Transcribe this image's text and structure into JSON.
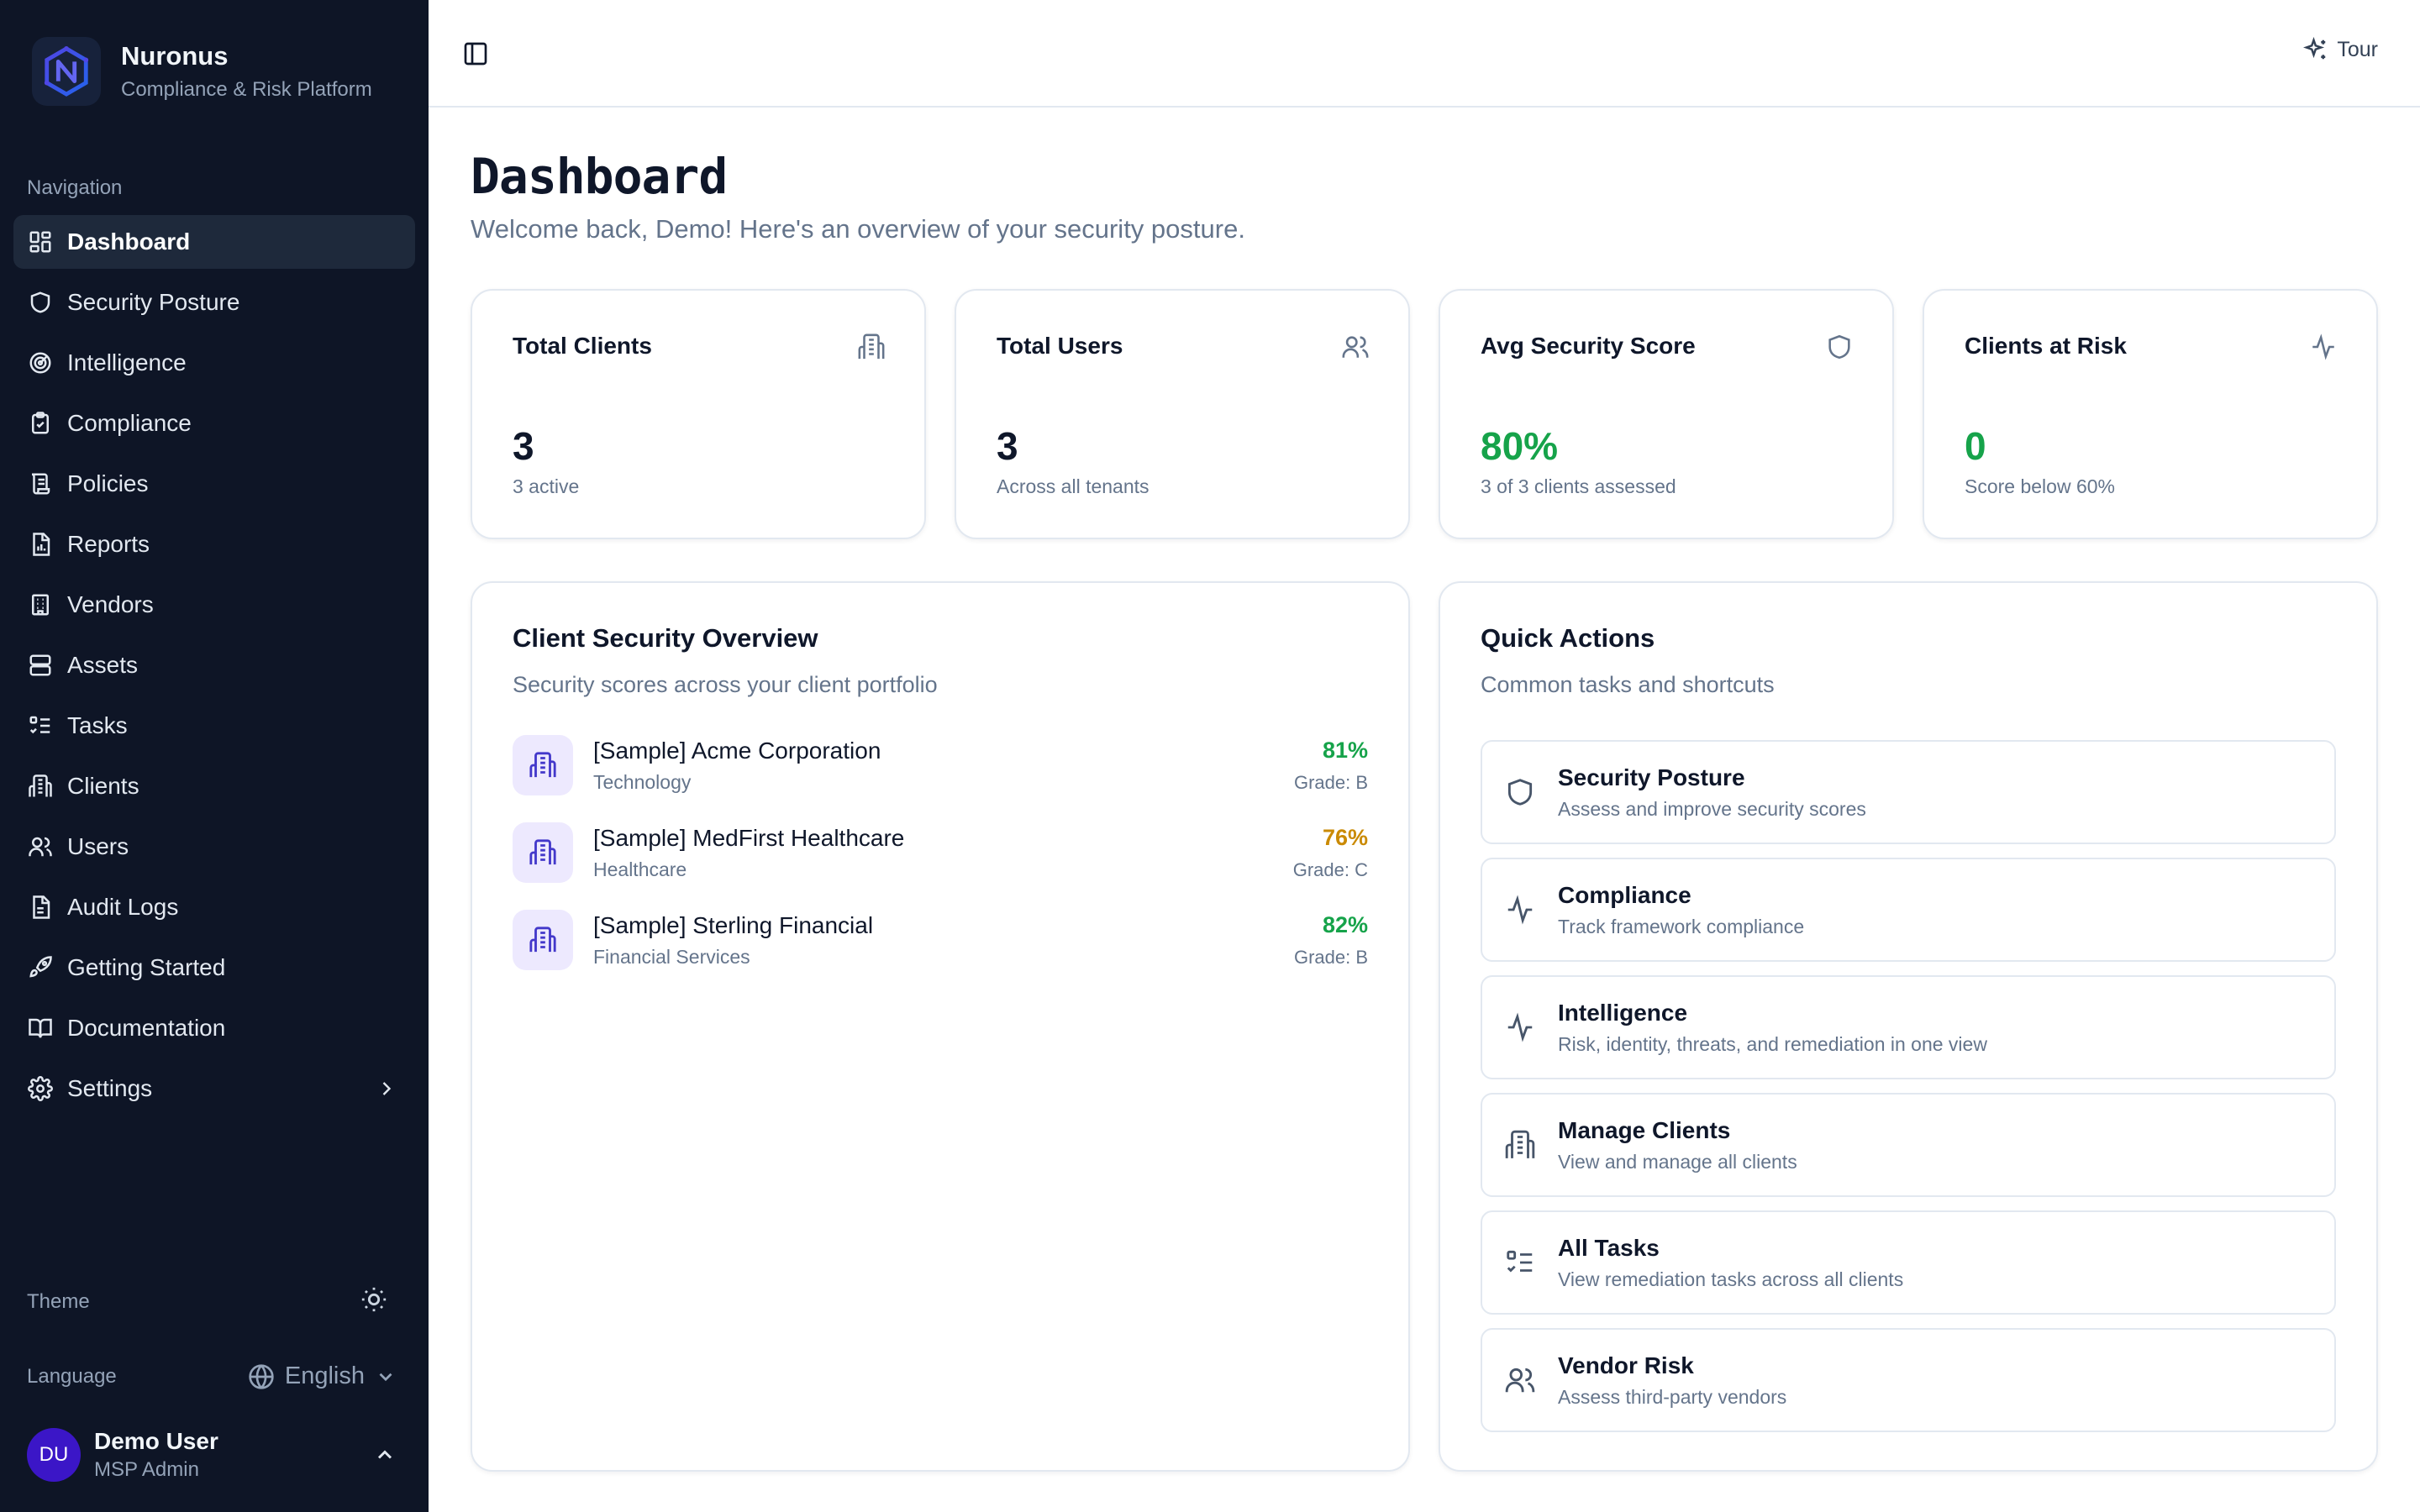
{
  "brand": {
    "name": "Nuronus",
    "subtitle": "Compliance & Risk Platform",
    "logo_icon": "nuronus-logo-icon"
  },
  "sidebar": {
    "heading": "Navigation",
    "items": [
      {
        "label": "Dashboard",
        "icon": "dashboard-icon",
        "active": true
      },
      {
        "label": "Security Posture",
        "icon": "shield-icon"
      },
      {
        "label": "Intelligence",
        "icon": "radar-icon"
      },
      {
        "label": "Compliance",
        "icon": "clipboard-check-icon"
      },
      {
        "label": "Policies",
        "icon": "scroll-icon"
      },
      {
        "label": "Reports",
        "icon": "report-icon"
      },
      {
        "label": "Vendors",
        "icon": "building-icon"
      },
      {
        "label": "Assets",
        "icon": "server-icon"
      },
      {
        "label": "Tasks",
        "icon": "list-checks-icon"
      },
      {
        "label": "Clients",
        "icon": "office-icon"
      },
      {
        "label": "Users",
        "icon": "users-icon"
      },
      {
        "label": "Audit Logs",
        "icon": "file-text-icon"
      },
      {
        "label": "Getting Started",
        "icon": "rocket-icon"
      },
      {
        "label": "Documentation",
        "icon": "book-icon"
      },
      {
        "label": "Settings",
        "icon": "gear-icon"
      }
    ],
    "theme_label": "Theme",
    "language_label": "Language",
    "language_value": "English",
    "user": {
      "initials": "DU",
      "name": "Demo User",
      "role": "MSP Admin"
    }
  },
  "topbar": {
    "tour_label": "Tour"
  },
  "page": {
    "title": "Dashboard",
    "subtitle": "Welcome back, Demo! Here's an overview of your security posture."
  },
  "stats": [
    {
      "label": "Total Clients",
      "value": "3",
      "desc": "3 active",
      "icon": "building-icon"
    },
    {
      "label": "Total Users",
      "value": "3",
      "desc": "Across all tenants",
      "icon": "users-icon"
    },
    {
      "label": "Avg Security Score",
      "value": "80%",
      "desc": "3 of 3 clients assessed",
      "icon": "shield-icon"
    },
    {
      "label": "Clients at Risk",
      "value": "0",
      "desc": "Score below 60%",
      "icon": "activity-icon"
    }
  ],
  "client_overview": {
    "title": "Client Security Overview",
    "subtitle": "Security scores across your client portfolio",
    "clients": [
      {
        "name": "[Sample] Acme Corporation",
        "industry": "Technology",
        "score": "81%",
        "grade": "Grade: B",
        "color": "#16a34a"
      },
      {
        "name": "[Sample] MedFirst Healthcare",
        "industry": "Healthcare",
        "score": "76%",
        "grade": "Grade: C",
        "color": "#ca8a04"
      },
      {
        "name": "[Sample] Sterling Financial",
        "industry": "Financial Services",
        "score": "82%",
        "grade": "Grade: B",
        "color": "#16a34a"
      }
    ]
  },
  "quick_actions": {
    "title": "Quick Actions",
    "subtitle": "Common tasks and shortcuts",
    "items": [
      {
        "title": "Security Posture",
        "desc": "Assess and improve security scores",
        "icon": "shield-icon"
      },
      {
        "title": "Compliance",
        "desc": "Track framework compliance",
        "icon": "activity-icon"
      },
      {
        "title": "Intelligence",
        "desc": "Risk, identity, threats, and remediation in one view",
        "icon": "activity-icon"
      },
      {
        "title": "Manage Clients",
        "desc": "View and manage all clients",
        "icon": "building-icon"
      },
      {
        "title": "All Tasks",
        "desc": "View remediation tasks across all clients",
        "icon": "list-checks-icon"
      },
      {
        "title": "Vendor Risk",
        "desc": "Assess third-party vendors",
        "icon": "users-icon"
      }
    ]
  }
}
